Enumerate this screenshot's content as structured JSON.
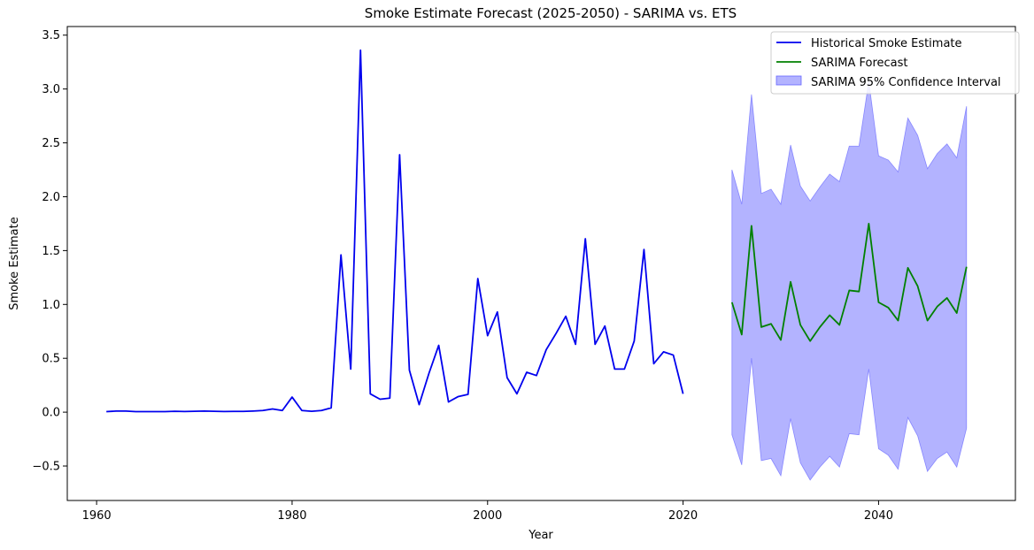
{
  "chart_data": {
    "type": "line",
    "title": "Smoke Estimate Forecast (2025-2050) - SARIMA vs. ETS",
    "xlabel": "Year",
    "ylabel": "Smoke Estimate",
    "xlim": [
      1957,
      2054
    ],
    "ylim": [
      -0.82,
      3.58
    ],
    "xticks": [
      1960,
      1980,
      2000,
      2020,
      2040
    ],
    "xtick_labels": [
      "1960",
      "1980",
      "2000",
      "2020",
      "2040"
    ],
    "yticks": [
      -0.5,
      0.0,
      0.5,
      1.0,
      1.5,
      2.0,
      2.5,
      3.0,
      3.5
    ],
    "ytick_labels": [
      "−0.5",
      "0.0",
      "0.5",
      "1.0",
      "1.5",
      "2.0",
      "2.5",
      "3.0",
      "3.5"
    ],
    "grid": false,
    "legend_position": "top-right",
    "colors": {
      "historical": "#0000ee",
      "forecast": "#008000",
      "ci_fill": "#8080ff",
      "ci_edge": "#6666ff"
    },
    "series": [
      {
        "name": "Historical Smoke Estimate",
        "kind": "line",
        "color": "#0000ee",
        "x": [
          1961,
          1962,
          1963,
          1964,
          1965,
          1966,
          1967,
          1968,
          1969,
          1970,
          1971,
          1972,
          1973,
          1974,
          1975,
          1976,
          1977,
          1978,
          1979,
          1980,
          1981,
          1982,
          1983,
          1984,
          1985,
          1986,
          1987,
          1988,
          1989,
          1990,
          1991,
          1992,
          1993,
          1994,
          1995,
          1996,
          1997,
          1998,
          1999,
          2000,
          2001,
          2002,
          2003,
          2004,
          2005,
          2006,
          2007,
          2008,
          2009,
          2010,
          2011,
          2012,
          2013,
          2014,
          2015,
          2016,
          2017,
          2018,
          2019,
          2020
        ],
        "y": [
          0.005,
          0.01,
          0.01,
          0.005,
          0.005,
          0.005,
          0.005,
          0.008,
          0.006,
          0.008,
          0.01,
          0.008,
          0.006,
          0.007,
          0.007,
          0.01,
          0.015,
          0.03,
          0.015,
          0.14,
          0.015,
          0.008,
          0.015,
          0.04,
          1.46,
          0.4,
          3.36,
          0.17,
          0.12,
          0.13,
          2.39,
          0.39,
          0.07,
          0.36,
          0.62,
          0.095,
          0.145,
          0.165,
          1.24,
          0.71,
          0.93,
          0.32,
          0.17,
          0.37,
          0.34,
          0.58,
          0.73,
          0.89,
          0.63,
          1.61,
          0.63,
          0.8,
          0.4,
          0.4,
          0.66,
          1.51,
          0.45,
          0.56,
          0.53,
          0.17
        ]
      },
      {
        "name": "SARIMA Forecast",
        "kind": "line",
        "color": "#008000",
        "x": [
          2025,
          2026,
          2027,
          2028,
          2029,
          2030,
          2031,
          2032,
          2033,
          2034,
          2035,
          2036,
          2037,
          2038,
          2039,
          2040,
          2041,
          2042,
          2043,
          2044,
          2045,
          2046,
          2047,
          2048,
          2049
        ],
        "y": [
          1.02,
          0.72,
          1.73,
          0.79,
          0.82,
          0.67,
          1.21,
          0.81,
          0.66,
          0.79,
          0.9,
          0.81,
          1.13,
          1.12,
          1.75,
          1.02,
          0.97,
          0.85,
          1.34,
          1.17,
          0.85,
          0.98,
          1.06,
          0.92,
          1.35
        ]
      },
      {
        "name": "SARIMA 95% Confidence Interval",
        "kind": "band",
        "color": "#8080ff",
        "x": [
          2025,
          2026,
          2027,
          2028,
          2029,
          2030,
          2031,
          2032,
          2033,
          2034,
          2035,
          2036,
          2037,
          2038,
          2039,
          2040,
          2041,
          2042,
          2043,
          2044,
          2045,
          2046,
          2047,
          2048,
          2049
        ],
        "lower": [
          -0.21,
          -0.49,
          0.5,
          -0.45,
          -0.43,
          -0.59,
          -0.06,
          -0.47,
          -0.63,
          -0.51,
          -0.41,
          -0.51,
          -0.2,
          -0.21,
          0.4,
          -0.34,
          -0.4,
          -0.53,
          -0.05,
          -0.22,
          -0.55,
          -0.43,
          -0.37,
          -0.51,
          -0.15
        ],
        "upper": [
          2.25,
          1.93,
          2.95,
          2.03,
          2.07,
          1.93,
          2.48,
          2.1,
          1.96,
          2.09,
          2.21,
          2.14,
          2.47,
          2.47,
          3.07,
          2.38,
          2.34,
          2.23,
          2.73,
          2.57,
          2.26,
          2.4,
          2.49,
          2.36,
          2.84
        ]
      }
    ]
  }
}
